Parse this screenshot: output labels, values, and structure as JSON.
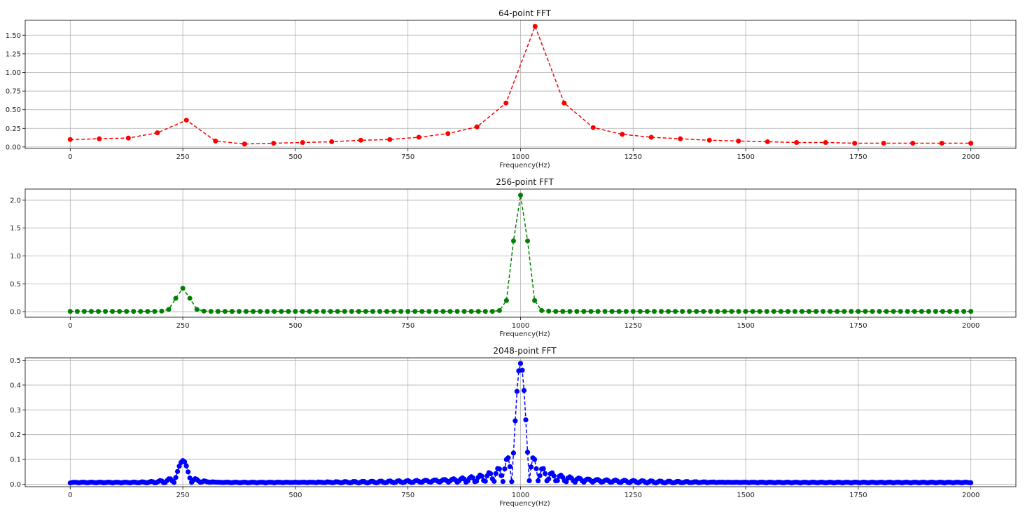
{
  "chart_data": [
    {
      "type": "line",
      "title": "64-point FFT",
      "xlabel": "Frequency(Hz)",
      "ylabel": "",
      "xlim": [
        -100,
        2100
      ],
      "ylim": [
        -0.02,
        1.7
      ],
      "xticks": [
        0,
        250,
        500,
        750,
        1000,
        1250,
        1500,
        1750,
        2000
      ],
      "xtick_labels": [
        "0",
        "250",
        "500",
        "750",
        "1000",
        "1250",
        "1500",
        "1750",
        "2000"
      ],
      "yticks": [
        0,
        0.25,
        0.5,
        0.75,
        1.0,
        1.25,
        1.5
      ],
      "ytick_labels": [
        "0.00",
        "0.25",
        "0.50",
        "0.75",
        "1.00",
        "1.25",
        "1.50"
      ],
      "grid": true,
      "series": [
        {
          "color": "#ff0000",
          "marker": "circle",
          "linestyle": "dashed",
          "x": [
            0,
            64.5,
            129,
            193.5,
            258,
            322.6,
            387.1,
            451.6,
            516.1,
            580.6,
            645.2,
            709.7,
            774.2,
            838.7,
            903.2,
            967.7,
            1032.3,
            1096.8,
            1161.3,
            1225.8,
            1290.3,
            1354.8,
            1419.4,
            1483.9,
            1548.4,
            1612.9,
            1677.4,
            1741.9,
            1806.5,
            1871,
            1935.5,
            2000
          ],
          "y": [
            0.1,
            0.11,
            0.12,
            0.19,
            0.36,
            0.08,
            0.04,
            0.05,
            0.06,
            0.07,
            0.09,
            0.1,
            0.13,
            0.18,
            0.27,
            0.59,
            1.62,
            0.59,
            0.26,
            0.17,
            0.13,
            0.11,
            0.09,
            0.08,
            0.07,
            0.06,
            0.06,
            0.05,
            0.05,
            0.05,
            0.05,
            0.05
          ]
        }
      ]
    },
    {
      "type": "line",
      "title": "256-point FFT",
      "xlabel": "Frequency(Hz)",
      "ylabel": "",
      "xlim": [
        -100,
        2100
      ],
      "ylim": [
        -0.1,
        2.2
      ],
      "xticks": [
        0,
        250,
        500,
        750,
        1000,
        1250,
        1500,
        1750,
        2000
      ],
      "xtick_labels": [
        "0",
        "250",
        "500",
        "750",
        "1000",
        "1250",
        "1500",
        "1750",
        "2000"
      ],
      "yticks": [
        0,
        0.5,
        1.0,
        1.5,
        2.0
      ],
      "ytick_labels": [
        "0.0",
        "0.5",
        "1.0",
        "1.5",
        "2.0"
      ],
      "grid": true,
      "series": [
        {
          "color": "#008000",
          "marker": "circle",
          "linestyle": "dashed",
          "generator": "sampled",
          "n": 129,
          "x_max": 2000,
          "peaks": [
            {
              "x": [
                203.1,
                218.8,
                234.4,
                250,
                265.6,
                281.3,
                296.9
              ],
              "y": [
                0.01,
                0.04,
                0.24,
                0.42,
                0.24,
                0.04,
                0.01
              ]
            },
            {
              "x": [
                953.1,
                968.8,
                984.4,
                1000,
                1015.6,
                1031.3,
                1046.9,
                1062.5
              ],
              "y": [
                0.02,
                0.2,
                1.27,
                2.09,
                1.27,
                0.2,
                0.02,
                0.01
              ]
            }
          ]
        }
      ]
    },
    {
      "type": "line",
      "title": "2048-point FFT",
      "xlabel": "Frequency(Hz)",
      "ylabel": "",
      "xlim": [
        -100,
        2100
      ],
      "ylim": [
        -0.01,
        0.51
      ],
      "xticks": [
        0,
        250,
        500,
        750,
        1000,
        1250,
        1500,
        1750,
        2000
      ],
      "xtick_labels": [
        "0",
        "250",
        "500",
        "750",
        "1000",
        "1250",
        "1500",
        "1750",
        "2000"
      ],
      "yticks": [
        0,
        0.1,
        0.2,
        0.3,
        0.4,
        0.5
      ],
      "ytick_labels": [
        "0.0",
        "0.1",
        "0.2",
        "0.3",
        "0.4",
        "0.5"
      ],
      "grid": true,
      "series": [
        {
          "color": "#0000ff",
          "marker": "circle",
          "linestyle": "dashed",
          "generator": "sinc",
          "x_max": 2000,
          "step": 3.906,
          "baseline": 0.005,
          "peaks": [
            {
              "center": 250,
              "amplitude": 0.093,
              "halfwidth": 20
            },
            {
              "center": 1000,
              "amplitude": 0.487,
              "halfwidth": 20
            }
          ]
        }
      ]
    }
  ]
}
